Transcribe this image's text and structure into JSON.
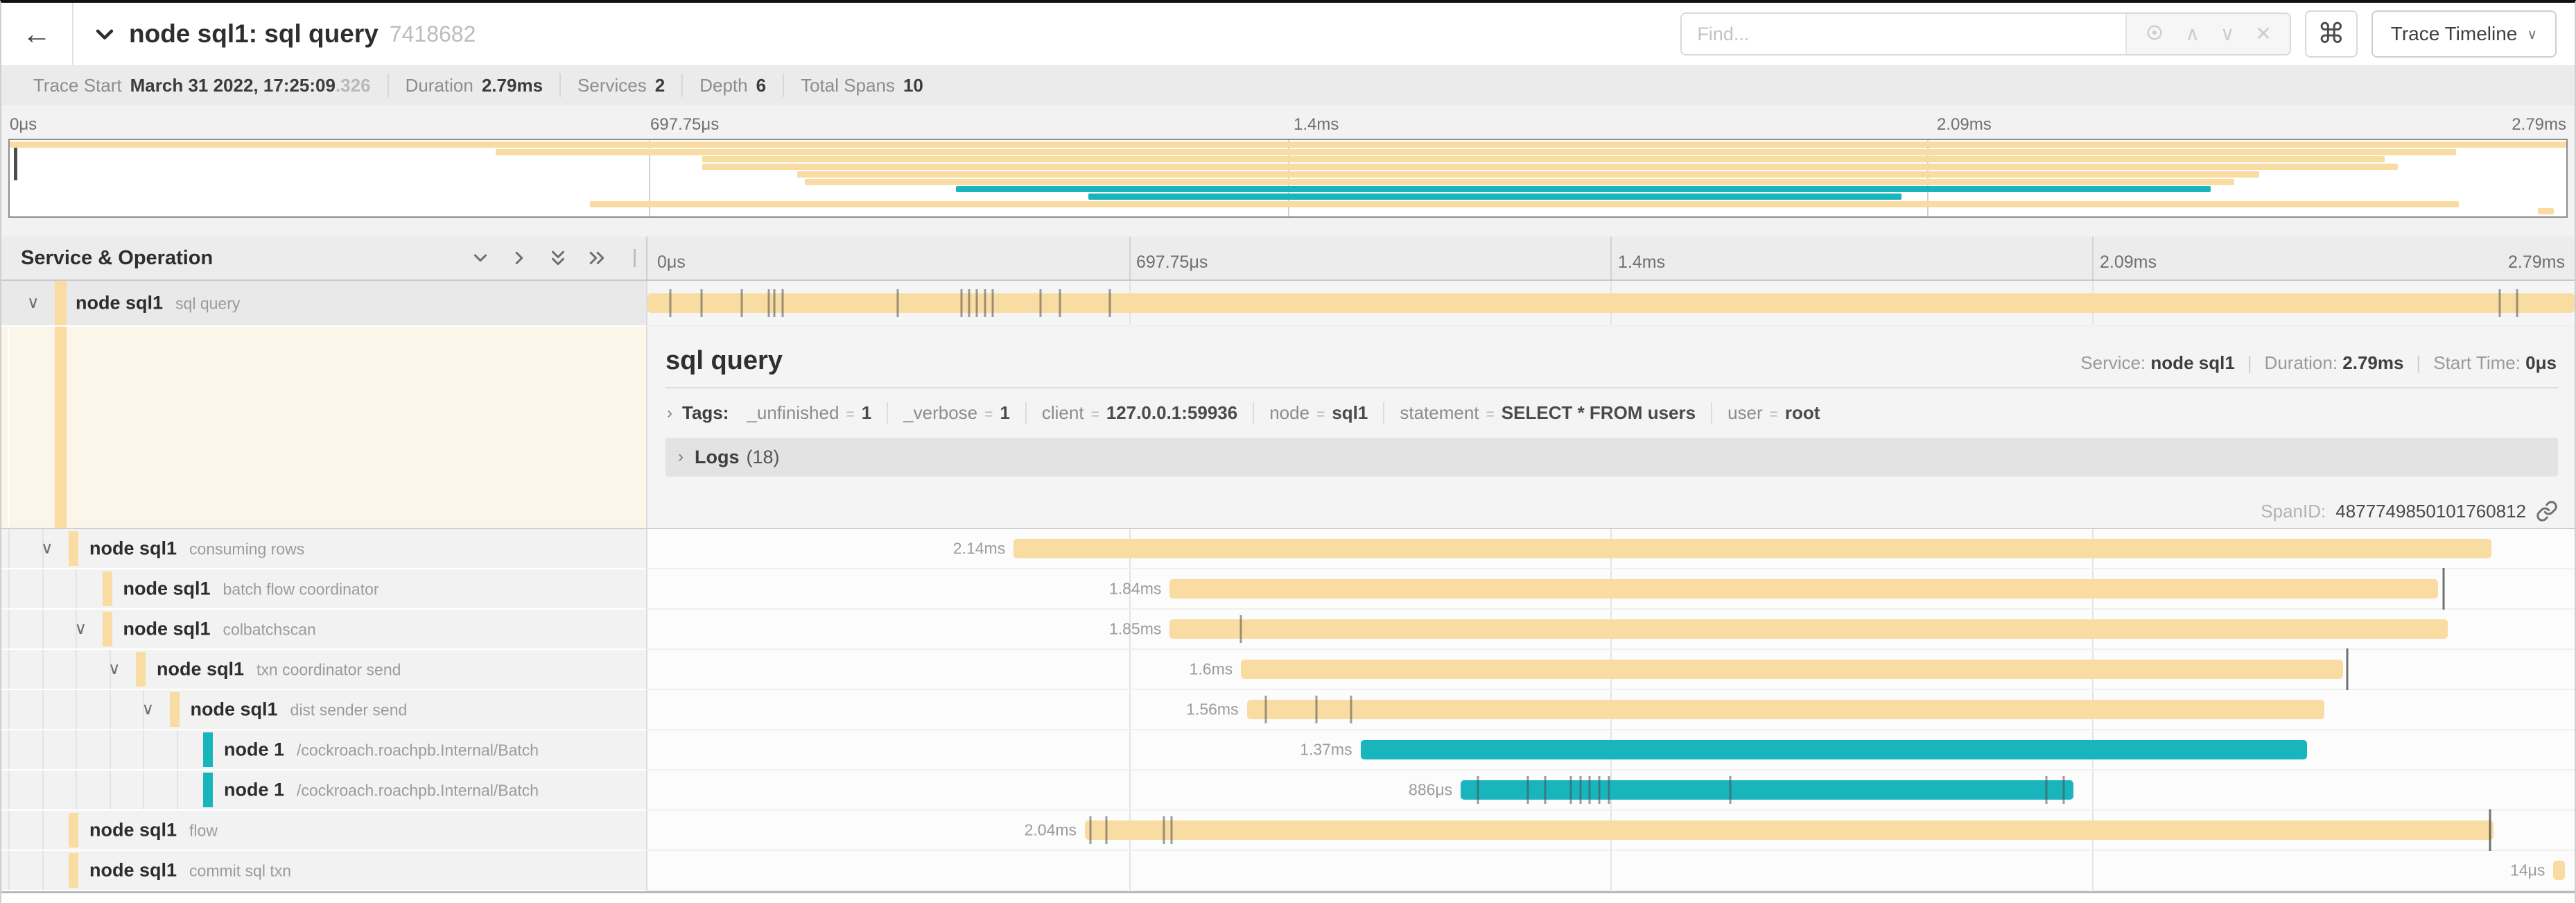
{
  "header": {
    "back_icon": "←",
    "title": "node sql1: sql query",
    "trace_id": "7418682",
    "find_placeholder": "Find...",
    "up_icon": "∧",
    "down_icon": "∨",
    "clear_icon": "✕",
    "shortcut_button": "⌘",
    "view_button": "Trace Timeline",
    "view_caret": "∨"
  },
  "trace_info": {
    "items": [
      {
        "label": "Trace Start",
        "value": "March 31 2022, 17:25:09",
        "suffix": ".326"
      },
      {
        "label": "Duration",
        "value": "2.79ms"
      },
      {
        "label": "Services",
        "value": "2"
      },
      {
        "label": "Depth",
        "value": "6"
      },
      {
        "label": "Total Spans",
        "value": "10"
      }
    ]
  },
  "ruler": {
    "ticks": [
      "0μs",
      "697.75μs",
      "1.4ms",
      "2.09ms",
      "2.79ms"
    ]
  },
  "grid": {
    "header_left": "Service & Operation"
  },
  "colors": {
    "tan": "#F8DCA1",
    "teal": "#19B5BC"
  },
  "spans": [
    {
      "service": "node sql1",
      "operation": "sql query",
      "depth": 0,
      "color": "tan",
      "start": 0,
      "end": 100,
      "label": "",
      "chevron": true,
      "selected": true,
      "ticks": [
        1.2,
        2.8,
        4.9,
        6.3,
        6.6,
        7.0,
        13.0,
        16.3,
        16.7,
        17.1,
        17.5,
        17.9,
        20.4,
        21.4,
        24.0,
        96.1,
        97.0
      ],
      "tall_ticks": []
    },
    {
      "service": "node sql1",
      "operation": "consuming rows",
      "depth": 1,
      "color": "tan",
      "start": 19.0,
      "end": 95.7,
      "label": "2.14ms",
      "chevron": true,
      "selected": false,
      "ticks": [],
      "tall_ticks": []
    },
    {
      "service": "node sql1",
      "operation": "batch flow coordinator",
      "depth": 2,
      "color": "tan",
      "start": 27.1,
      "end": 92.9,
      "label": "1.84ms",
      "chevron": false,
      "selected": false,
      "ticks": [],
      "tall_ticks": [
        93.2
      ]
    },
    {
      "service": "node sql1",
      "operation": "colbatchscan",
      "depth": 2,
      "color": "tan",
      "start": 27.1,
      "end": 93.4,
      "label": "1.85ms",
      "chevron": true,
      "selected": false,
      "ticks": [
        30.8
      ],
      "tall_ticks": []
    },
    {
      "service": "node sql1",
      "operation": "txn coordinator send",
      "depth": 3,
      "color": "tan",
      "start": 30.8,
      "end": 88.0,
      "label": "1.6ms",
      "chevron": true,
      "selected": false,
      "ticks": [],
      "tall_ticks": [
        88.2
      ]
    },
    {
      "service": "node sql1",
      "operation": "dist sender send",
      "depth": 4,
      "color": "tan",
      "start": 31.1,
      "end": 87.0,
      "label": "1.56ms",
      "chevron": true,
      "selected": false,
      "ticks": [
        32.1,
        34.7,
        36.5
      ],
      "tall_ticks": []
    },
    {
      "service": "node 1",
      "operation": "/cockroach.roachpb.Internal/Batch",
      "depth": 5,
      "color": "teal",
      "start": 37.0,
      "end": 86.1,
      "label": "1.37ms",
      "chevron": false,
      "selected": false,
      "ticks": [],
      "tall_ticks": []
    },
    {
      "service": "node 1",
      "operation": "/cockroach.roachpb.Internal/Batch",
      "depth": 5,
      "color": "teal",
      "start": 42.2,
      "end": 74.0,
      "label": "886μs",
      "chevron": false,
      "selected": false,
      "ticks": [
        43.1,
        45.7,
        46.6,
        47.9,
        48.4,
        48.9,
        49.4,
        49.9,
        56.2,
        72.6,
        73.5
      ],
      "tall_ticks": []
    },
    {
      "service": "node sql1",
      "operation": "flow",
      "depth": 1,
      "color": "tan",
      "start": 22.7,
      "end": 95.8,
      "label": "2.04ms",
      "chevron": false,
      "selected": false,
      "ticks": [
        23.0,
        23.8,
        26.8,
        27.2
      ],
      "tall_ticks": [
        95.6
      ]
    },
    {
      "service": "node sql1",
      "operation": "commit sql txn",
      "depth": 1,
      "color": "tan",
      "start": 98.9,
      "end": 99.5,
      "label": "14μs",
      "chevron": false,
      "selected": false,
      "ticks": [],
      "tall_ticks": []
    }
  ],
  "detail": {
    "title": "sql query",
    "service_label": "Service:",
    "service": "node sql1",
    "duration_label": "Duration:",
    "duration": "2.79ms",
    "start_label": "Start Time:",
    "start": "0μs",
    "tags_label": "Tags:",
    "tags": [
      {
        "key": "_unfinished",
        "value": "1"
      },
      {
        "key": "_verbose",
        "value": "1"
      },
      {
        "key": "client",
        "value": "127.0.0.1:59936"
      },
      {
        "key": "node",
        "value": "sql1"
      },
      {
        "key": "statement",
        "value": "SELECT * FROM users"
      },
      {
        "key": "user",
        "value": "root"
      }
    ],
    "logs_label": "Logs",
    "logs_count": "(18)",
    "spanid_label": "SpanID:",
    "spanid": "4877749850101760812"
  }
}
